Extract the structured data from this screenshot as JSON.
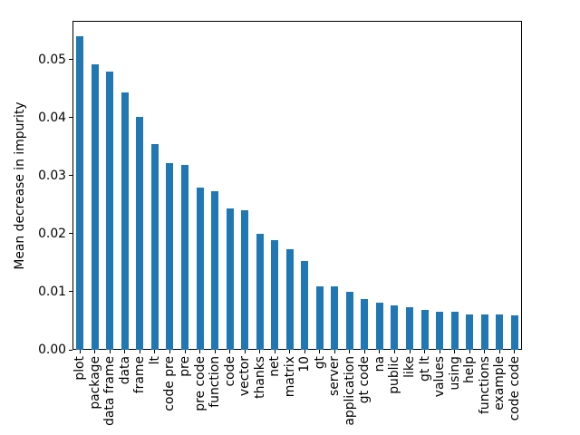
{
  "chart_data": {
    "type": "bar",
    "title": "",
    "xlabel": "",
    "ylabel": "Mean decrease in impurity",
    "categories": [
      "plot",
      "package",
      "data frame",
      "data",
      "frame",
      "lt",
      "code pre",
      "pre",
      "pre code",
      "function",
      "code",
      "vector",
      "thanks",
      "net",
      "matrix",
      "10",
      "gt",
      "server",
      "application",
      "gt code",
      "na",
      "public",
      "like",
      "gt lt",
      "values",
      "using",
      "help",
      "functions",
      "example",
      "code code"
    ],
    "values": [
      0.054,
      0.0492,
      0.048,
      0.0443,
      0.0402,
      0.0354,
      0.0322,
      0.0319,
      0.0279,
      0.0273,
      0.0243,
      0.0241,
      0.02,
      0.0189,
      0.0174,
      0.0153,
      0.011,
      0.0109,
      0.01,
      0.0088,
      0.0081,
      0.0076,
      0.0074,
      0.0068,
      0.0065,
      0.0065,
      0.0061,
      0.0061,
      0.0061,
      0.0059
    ],
    "ylim": [
      0,
      0.0567
    ],
    "yticks": [
      0.0,
      0.01,
      0.02,
      0.03,
      0.04,
      0.05
    ],
    "ytick_labels": [
      "0.00",
      "0.01",
      "0.02",
      "0.03",
      "0.04",
      "0.05"
    ],
    "bar_color": "#1f77b4",
    "tick_color": "#000000",
    "spine_color": "#000000",
    "grid": false,
    "legend_position": "none",
    "x_label_rotation_deg": 90,
    "bar_width_fraction": 0.5
  }
}
